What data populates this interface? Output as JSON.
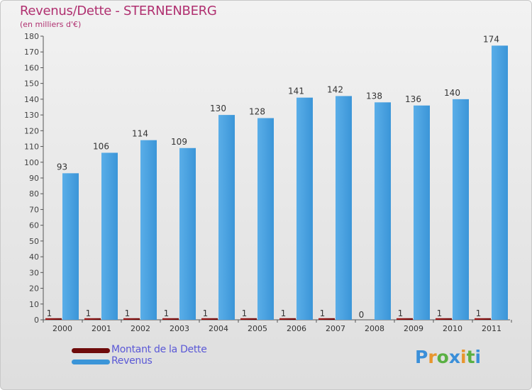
{
  "header": {
    "title": "Revenus/Dette - STERNENBERG",
    "subtitle": "(en milliers d'€)"
  },
  "legend": {
    "items": [
      {
        "label": "Montant de la Dette",
        "color": "#6e0a0a"
      },
      {
        "label": "Revenus",
        "color": "#3b95d8"
      }
    ]
  },
  "logo": {
    "text": "Proxiti",
    "letters": [
      {
        "ch": "P",
        "color": "#3a8fd9"
      },
      {
        "ch": "r",
        "color": "#e8962e"
      },
      {
        "ch": "o",
        "color": "#5ab043"
      },
      {
        "ch": "x",
        "color": "#3a8fd9"
      },
      {
        "ch": "i",
        "color": "#e8962e"
      },
      {
        "ch": "t",
        "color": "#5ab043"
      },
      {
        "ch": "i",
        "color": "#3a8fd9"
      }
    ]
  },
  "chart_data": {
    "type": "bar",
    "title": "Revenus/Dette - STERNENBERG",
    "subtitle": "(en milliers d'€)",
    "categories": [
      "2000",
      "2001",
      "2002",
      "2003",
      "2004",
      "2005",
      "2006",
      "2007",
      "2008",
      "2009",
      "2010",
      "2011"
    ],
    "series": [
      {
        "name": "Montant de la Dette",
        "color": "#6e0a0a",
        "values": [
          1,
          1,
          1,
          1,
          1,
          1,
          1,
          1,
          0,
          1,
          1,
          1
        ]
      },
      {
        "name": "Revenus",
        "color": "#3b95d8",
        "values": [
          93,
          106,
          114,
          109,
          130,
          128,
          141,
          142,
          138,
          136,
          140,
          174
        ]
      }
    ],
    "ylim": [
      0,
      180
    ],
    "yticks": [
      0,
      10,
      20,
      30,
      40,
      50,
      60,
      70,
      80,
      90,
      100,
      110,
      120,
      130,
      140,
      150,
      160,
      170,
      180
    ],
    "grid": false,
    "legend_position": "bottom-left",
    "xlabel": "",
    "ylabel": ""
  }
}
